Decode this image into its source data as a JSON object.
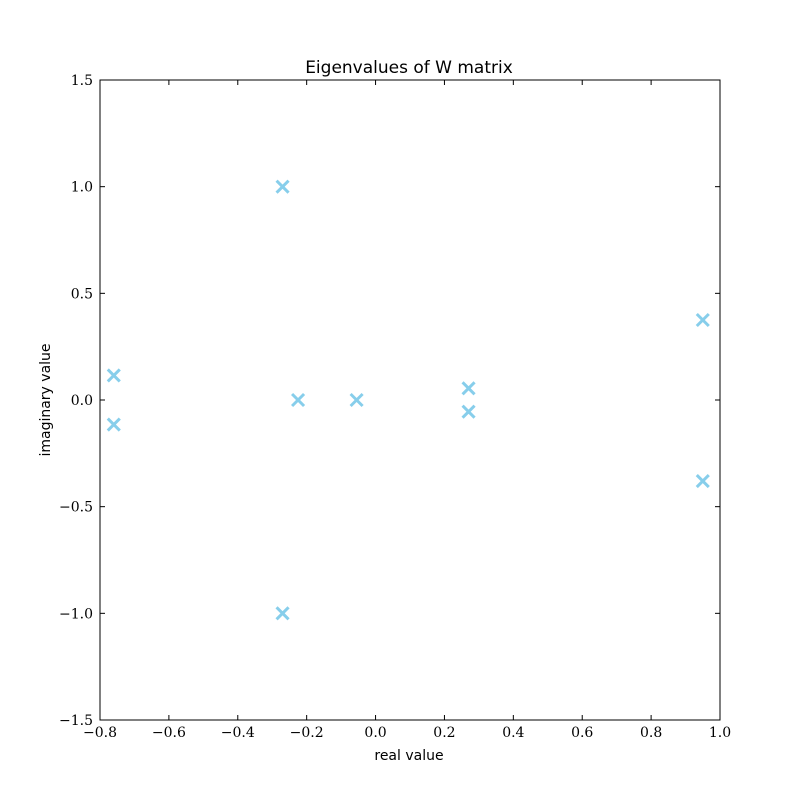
{
  "chart_data": {
    "type": "scatter",
    "title": "Eigenvalues of W matrix",
    "xlabel": "real value",
    "ylabel": "imaginary value",
    "xlim": [
      -0.8,
      1.0
    ],
    "ylim": [
      -1.5,
      1.5
    ],
    "xticks": [
      -0.8,
      -0.6,
      -0.4,
      -0.2,
      0.0,
      0.2,
      0.4,
      0.6,
      0.8,
      1.0
    ],
    "yticks": [
      -1.5,
      -1.0,
      -0.5,
      0.0,
      0.5,
      1.0,
      1.5
    ],
    "xtick_labels": [
      "−0.8",
      "−0.6",
      "−0.4",
      "−0.2",
      "0.0",
      "0.2",
      "0.4",
      "0.6",
      "0.8",
      "1.0"
    ],
    "ytick_labels": [
      "−1.5",
      "−1.0",
      "−0.5",
      "0.0",
      "0.5",
      "1.0",
      "1.5"
    ],
    "marker": "x",
    "marker_color": "#87CEEB",
    "grid": false,
    "points": [
      {
        "x": -0.27,
        "y": 1.0
      },
      {
        "x": -0.27,
        "y": -1.0
      },
      {
        "x": -0.76,
        "y": 0.115
      },
      {
        "x": -0.76,
        "y": -0.115
      },
      {
        "x": -0.225,
        "y": 0.0
      },
      {
        "x": -0.055,
        "y": 0.0
      },
      {
        "x": 0.27,
        "y": 0.055
      },
      {
        "x": 0.27,
        "y": -0.055
      },
      {
        "x": 0.95,
        "y": 0.375
      },
      {
        "x": 0.95,
        "y": -0.38
      }
    ]
  }
}
